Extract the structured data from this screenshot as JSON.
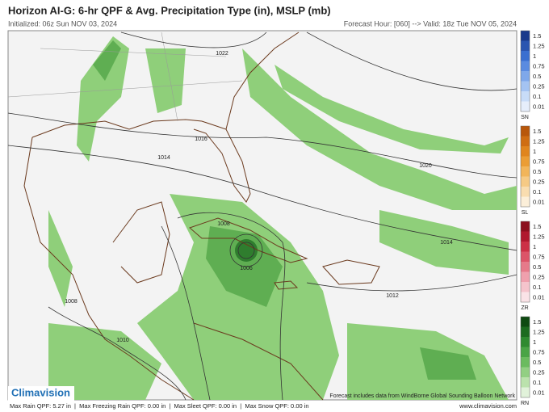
{
  "header": {
    "title": "Horizon AI-G: 6-hr QPF & Avg. Precipitation Type (in), MSLP (mb)",
    "initialized": "Initialized: 06z Sun NOV 03, 2024",
    "forecast": "Forecast Hour: [060] --> Valid: 18z Tue NOV 05, 2024"
  },
  "isobars": [
    {
      "label": "1022"
    },
    {
      "label": "1016"
    },
    {
      "label": "1014"
    },
    {
      "label": "1020"
    },
    {
      "label": "1008"
    },
    {
      "label": "1006"
    },
    {
      "label": "1014"
    },
    {
      "label": "1012"
    },
    {
      "label": "1008"
    },
    {
      "label": "1010"
    }
  ],
  "legend": [
    {
      "name": "SN",
      "levels": [
        "1.5",
        "1.25",
        "1",
        "0.75",
        "0.5",
        "0.25",
        "0.1",
        "0.01"
      ]
    },
    {
      "name": "SL",
      "levels": [
        "1.5",
        "1.25",
        "1",
        "0.75",
        "0.5",
        "0.25",
        "0.1",
        "0.01"
      ]
    },
    {
      "name": "ZR",
      "levels": [
        "1.5",
        "1.25",
        "1",
        "0.75",
        "0.5",
        "0.25",
        "0.1",
        "0.01"
      ]
    },
    {
      "name": "RN",
      "levels": [
        "1.5",
        "1.25",
        "1",
        "0.75",
        "0.5",
        "0.25",
        "0.1",
        "0.01"
      ]
    }
  ],
  "footer": {
    "logo": "Climavision",
    "credit": "Forecast includes data from WindBorne Global Sounding Balloon Network",
    "stats": "Max Rain QPF: 5.27 in  |  Max Freezing Rain QPF: 0.00 in  |  Max Sleet QPF: 0.00 in  |  Max Snow QPF: 0.00 in",
    "url": "www.climavision.com"
  }
}
